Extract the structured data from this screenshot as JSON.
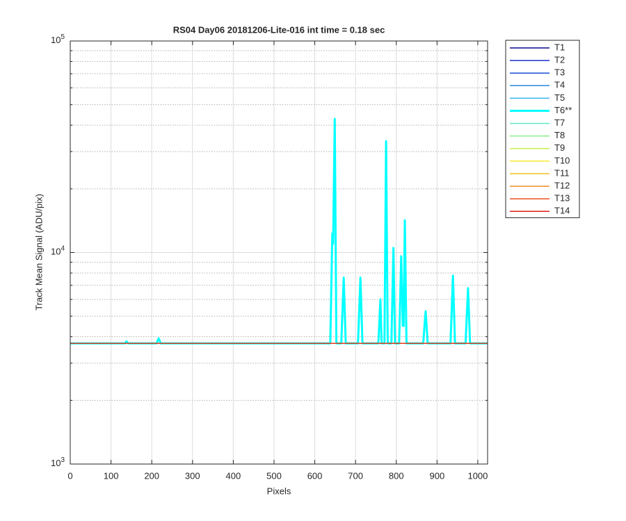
{
  "chart_data": {
    "type": "line",
    "title": "RS04 Day06 20181206-Lite-016 int time = 0.18 sec",
    "x_label": "Pixels",
    "y_label": "Track Mean Signal (ADU/pix)",
    "xlim": [
      0,
      1024
    ],
    "xticks": [
      0,
      100,
      200,
      300,
      400,
      500,
      600,
      700,
      800,
      900,
      1000
    ],
    "ylim": [
      1000,
      100000
    ],
    "y_scale": "log",
    "yticks": [
      {
        "value": 1000,
        "label": "10",
        "exponent": "3"
      },
      {
        "value": 10000,
        "label": "10",
        "exponent": "4"
      },
      {
        "value": 100000,
        "label": "10",
        "exponent": "5"
      }
    ],
    "yminorticks": [
      2000,
      3000,
      4000,
      5000,
      6000,
      7000,
      8000,
      9000,
      20000,
      30000,
      40000,
      50000,
      60000,
      70000,
      80000,
      90000
    ],
    "grid": true,
    "legend_position": "outside-right",
    "series": [
      {
        "name": "T1",
        "color": "#0a0a8a",
        "x": [
          0,
          1023
        ],
        "values": [
          3720,
          3720
        ]
      },
      {
        "name": "T2",
        "color": "#1a2ecc",
        "x": [
          0,
          1023
        ],
        "values": [
          3720,
          3720
        ]
      },
      {
        "name": "T3",
        "color": "#1a4fd6",
        "x": [
          0,
          1023
        ],
        "values": [
          3720,
          3720
        ]
      },
      {
        "name": "T4",
        "color": "#2a8ae0",
        "x": [
          0,
          1023
        ],
        "values": [
          3720,
          3720
        ]
      },
      {
        "name": "T5",
        "color": "#33b5ec",
        "x": [
          0,
          1023
        ],
        "values": [
          3720,
          3720
        ]
      },
      {
        "name": "T6**",
        "color": "#00ffff",
        "line_width": 3,
        "x": [
          0,
          134,
          138,
          142,
          212,
          217,
          222,
          638,
          643,
          645,
          649,
          653,
          665,
          671,
          676,
          706,
          712,
          717,
          756,
          761,
          764,
          771,
          775,
          779,
          788,
          793,
          797,
          807,
          812,
          816,
          818,
          821,
          825,
          866,
          872,
          877,
          933,
          939,
          944,
          970,
          976,
          981,
          1023
        ],
        "values": [
          3720,
          3720,
          3800,
          3720,
          3720,
          3930,
          3720,
          3720,
          12300,
          11000,
          42800,
          3720,
          3720,
          7600,
          3720,
          3720,
          7600,
          3720,
          3720,
          6000,
          3720,
          3720,
          33600,
          3720,
          3720,
          10500,
          3720,
          3720,
          9600,
          4500,
          4500,
          14200,
          3720,
          3720,
          5270,
          3720,
          3720,
          7770,
          3720,
          3720,
          6780,
          3720,
          3720
        ]
      },
      {
        "name": "T7",
        "color": "#5fe6c6",
        "x": [
          0,
          1023
        ],
        "values": [
          3720,
          3720
        ]
      },
      {
        "name": "T8",
        "color": "#8af08a",
        "x": [
          0,
          1023
        ],
        "values": [
          3720,
          3720
        ]
      },
      {
        "name": "T9",
        "color": "#c8f050",
        "x": [
          0,
          1023
        ],
        "values": [
          3720,
          3720
        ]
      },
      {
        "name": "T10",
        "color": "#f5e830",
        "x": [
          0,
          1023
        ],
        "values": [
          3720,
          3720
        ]
      },
      {
        "name": "T11",
        "color": "#f0c020",
        "x": [
          0,
          1023
        ],
        "values": [
          3720,
          3720
        ]
      },
      {
        "name": "T12",
        "color": "#f08a20",
        "x": [
          0,
          1023
        ],
        "values": [
          3720,
          3720
        ]
      },
      {
        "name": "T13",
        "color": "#f05020",
        "x": [
          0,
          1023
        ],
        "values": [
          3720,
          3720
        ]
      },
      {
        "name": "T14",
        "color": "#e01a1a",
        "x": [
          0,
          1023
        ],
        "values": [
          3720,
          3720
        ]
      }
    ]
  }
}
